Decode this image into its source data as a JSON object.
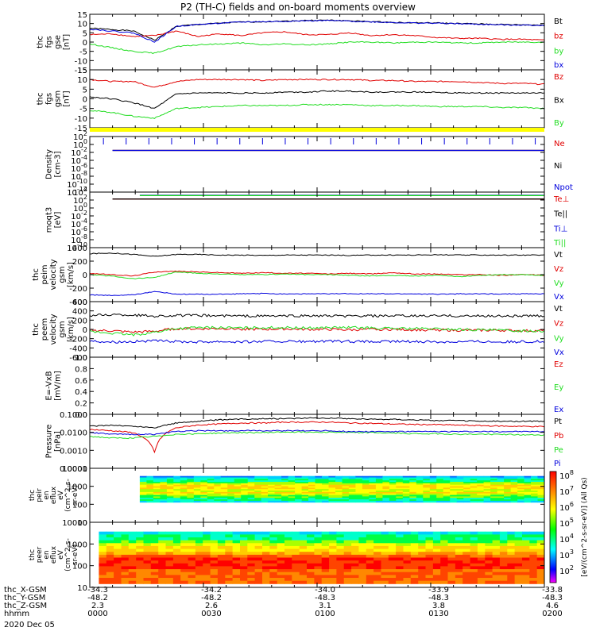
{
  "title": "P2 (TH-C) fields and on-board moments overview",
  "colors": {
    "black": "#000000",
    "red": "#e00000",
    "green": "#22dd22",
    "blue": "#0000dd",
    "yellow": "#ffff00"
  },
  "chart_data": [
    {
      "id": "fgs-gse",
      "type": "line",
      "ylabel": [
        "thc",
        "fgs",
        "gse",
        "[nT]"
      ],
      "ylim": [
        -15,
        15
      ],
      "yticks": [
        15,
        10,
        5,
        0,
        -5,
        -10,
        -15
      ],
      "series": [
        {
          "name": "Bt",
          "color": "#000000",
          "level": 9,
          "values": [
            7.5,
            6.8,
            6,
            1,
            8.5,
            9.5,
            10.2,
            10.8,
            11,
            11.3,
            11.7,
            11.8,
            11.5,
            11,
            10.6,
            10.4,
            10.3,
            10,
            9.8,
            9.5,
            9.3,
            9.2
          ]
        },
        {
          "name": "bz",
          "color": "#e00000",
          "values": [
            4,
            4.5,
            3,
            3.5,
            6,
            3,
            4.5,
            3.5,
            5,
            5.5,
            4,
            4,
            5,
            3.5,
            4,
            3.5,
            2.5,
            2,
            2,
            1.5,
            1.5,
            1
          ]
        },
        {
          "name": "by",
          "color": "#22dd22",
          "values": [
            -1,
            -3,
            -5,
            -6,
            -2.5,
            -1.5,
            -1,
            -0.5,
            -1.5,
            -1,
            -1.5,
            -1,
            0,
            0,
            -0.5,
            0,
            0,
            -0.5,
            -0.5,
            0,
            0,
            0
          ]
        },
        {
          "name": "bx",
          "color": "#0000dd",
          "values": [
            7,
            6,
            5,
            0,
            8.5,
            9.5,
            10.2,
            10.8,
            11,
            11.2,
            11.5,
            11.6,
            11.3,
            10.9,
            10.6,
            10.3,
            10.2,
            9.9,
            9.6,
            9.3,
            9.2,
            9
          ]
        }
      ]
    },
    {
      "id": "fgs-gsm",
      "type": "line",
      "ylabel": [
        "thc",
        "fgs",
        "gsm",
        "[nT]"
      ],
      "ylim": [
        -15,
        15
      ],
      "yticks": [
        15,
        10,
        5,
        0,
        -5,
        -10,
        -15
      ],
      "series": [
        {
          "name": "Bz",
          "color": "#e00000",
          "values": [
            10,
            9,
            9,
            6,
            9,
            10,
            10,
            10,
            9.5,
            10,
            10,
            10,
            10,
            9.5,
            9.5,
            9,
            9,
            9,
            8.5,
            8,
            8,
            7.5
          ]
        },
        {
          "name": "Bx",
          "color": "#000000",
          "values": [
            1,
            0,
            -2,
            -5,
            2.5,
            3,
            3,
            3,
            3,
            3.5,
            3.5,
            4,
            4,
            3.5,
            3.5,
            3.5,
            3.5,
            3,
            3,
            3,
            3,
            3
          ]
        },
        {
          "name": "By",
          "color": "#22dd22",
          "values": [
            -6,
            -7,
            -9,
            -10,
            -5,
            -4.5,
            -4,
            -3.5,
            -3.5,
            -3.5,
            -3,
            -3,
            -3,
            -3.5,
            -3.5,
            -3.5,
            -4,
            -4,
            -4,
            -4.5,
            -4.5,
            -5
          ]
        }
      ]
    },
    {
      "id": "density",
      "type": "line",
      "ylabel": [
        "Density",
        "[cm-3]"
      ],
      "ylim": [
        -12,
        4
      ],
      "yticks": [
        "10^2",
        "10^0",
        "10^-2",
        "10^-4",
        "10^-6",
        "10^-8",
        "10^-10",
        "10^-12"
      ],
      "series": [
        {
          "name": "Ne",
          "color": "#e00000",
          "level": 0
        },
        {
          "name": "Ni",
          "color": "#000000",
          "level": 0
        },
        {
          "name": "Npot",
          "color": "#0000dd",
          "level": 0
        }
      ]
    },
    {
      "id": "temperature",
      "type": "line",
      "ylabel": [
        "moqt3",
        "[eV]"
      ],
      "ylim": [
        -12,
        4
      ],
      "yticks": [
        "10^4",
        "10^2",
        "10^0",
        "10^-2",
        "10^-4",
        "10^-6",
        "10^-8",
        "10^-10"
      ],
      "series": [
        {
          "name": "Te⊥",
          "color": "#e00000",
          "level": 2
        },
        {
          "name": "Te||",
          "color": "#000000",
          "level": 2
        },
        {
          "name": "Ti⊥",
          "color": "#0000dd",
          "level": 3.1
        },
        {
          "name": "Ti||",
          "color": "#22dd22",
          "level": 3
        }
      ]
    },
    {
      "id": "peim-velocity",
      "type": "line",
      "ylabel": [
        "thc",
        "peim",
        "velocity",
        "gsm",
        "[km/s]"
      ],
      "ylim": [
        -400,
        400
      ],
      "yticks": [
        400,
        200,
        0,
        -200,
        -400
      ],
      "series": [
        {
          "name": "Vt",
          "color": "#000000",
          "values": [
            310,
            320,
            300,
            270,
            300,
            300,
            290,
            290,
            285,
            290,
            290,
            290,
            285,
            290,
            290,
            290,
            295,
            290,
            290,
            290,
            290,
            290
          ]
        },
        {
          "name": "Vz",
          "color": "#e00000",
          "values": [
            20,
            0,
            -20,
            40,
            50,
            40,
            30,
            20,
            30,
            20,
            20,
            10,
            20,
            10,
            30,
            10,
            10,
            0,
            0,
            -10,
            0,
            -10
          ]
        },
        {
          "name": "Vy",
          "color": "#22dd22",
          "values": [
            0,
            -20,
            -60,
            -40,
            40,
            20,
            10,
            0,
            0,
            10,
            0,
            0,
            -10,
            -20,
            -10,
            -20,
            -10,
            -30,
            -10,
            0,
            0,
            -10
          ]
        },
        {
          "name": "Vx",
          "color": "#0000dd",
          "values": [
            -300,
            -310,
            -300,
            -250,
            -290,
            -290,
            -290,
            -285,
            -280,
            -285,
            -285,
            -285,
            -280,
            -285,
            -285,
            -285,
            -290,
            -285,
            -285,
            -285,
            -285,
            -285
          ]
        }
      ]
    },
    {
      "id": "peem-velocity",
      "type": "line",
      "ylabel": [
        "thc",
        "peem",
        "velocity",
        "gsm",
        "[km/s]"
      ],
      "ylim": [
        -600,
        600
      ],
      "yticks": [
        600,
        400,
        200,
        0,
        -200,
        -400,
        -600
      ],
      "series": [
        {
          "name": "Vt",
          "color": "#000000",
          "values": [
            300,
            320,
            310,
            290,
            300,
            300,
            295,
            290,
            290,
            290,
            295,
            290,
            285,
            290,
            290,
            290,
            295,
            290,
            290,
            290,
            290,
            290
          ]
        },
        {
          "name": "Vz",
          "color": "#e00000",
          "values": [
            -20,
            -30,
            -60,
            -40,
            20,
            10,
            20,
            10,
            0,
            10,
            0,
            0,
            -10,
            0,
            0,
            -10,
            -10,
            -20,
            -20,
            -20,
            -30,
            -30
          ]
        },
        {
          "name": "Vy",
          "color": "#22dd22",
          "values": [
            -50,
            -80,
            -120,
            -60,
            20,
            40,
            40,
            30,
            40,
            40,
            30,
            40,
            40,
            30,
            20,
            20,
            10,
            0,
            -10,
            -20,
            -30,
            -30
          ]
        },
        {
          "name": "Vx",
          "color": "#0000dd",
          "values": [
            -250,
            -270,
            -260,
            -250,
            -260,
            -270,
            -260,
            -270,
            -260,
            -260,
            -265,
            -260,
            -260,
            -270,
            -260,
            -260,
            -270,
            -265,
            -260,
            -270,
            -265,
            -260
          ]
        }
      ]
    },
    {
      "id": "efield",
      "type": "line",
      "ylabel": [
        "E=-VxB",
        "[mV/m]"
      ],
      "ylim": [
        0,
        1
      ],
      "yticks": [
        "1.0",
        "0.8",
        "0.6",
        "0.4",
        "0.2",
        "0.0"
      ],
      "series": [
        {
          "name": "Ez",
          "color": "#e00000"
        },
        {
          "name": "Ey",
          "color": "#22dd22"
        },
        {
          "name": "Ex",
          "color": "#0000dd"
        }
      ]
    },
    {
      "id": "pressure",
      "type": "line",
      "ylabel": [
        "Pressure",
        "[nPa]"
      ],
      "ylim": [
        -3.4,
        -0.9
      ],
      "yticks": [
        "0.1000",
        "0.0100",
        "0.0010",
        "0.0001"
      ],
      "series": [
        {
          "name": "Pt",
          "color": "#000000",
          "values": [
            0.035,
            0.04,
            0.035,
            0.03,
            0.05,
            0.06,
            0.07,
            0.075,
            0.08,
            0.08,
            0.085,
            0.085,
            0.08,
            0.075,
            0.075,
            0.07,
            0.065,
            0.065,
            0.06,
            0.06,
            0.06,
            0.06
          ]
        },
        {
          "name": "Pb",
          "color": "#e00000",
          "values": [
            0.025,
            0.022,
            0.018,
            0.002,
            0.03,
            0.04,
            0.045,
            0.05,
            0.05,
            0.055,
            0.055,
            0.055,
            0.05,
            0.048,
            0.045,
            0.043,
            0.042,
            0.04,
            0.038,
            0.036,
            0.035,
            0.034
          ]
        },
        {
          "name": "Pe",
          "color": "#22dd22",
          "values": [
            0.012,
            0.01,
            0.01,
            0.012,
            0.015,
            0.016,
            0.017,
            0.018,
            0.018,
            0.019,
            0.019,
            0.019,
            0.018,
            0.018,
            0.017,
            0.016,
            0.016,
            0.015,
            0.015,
            0.015,
            0.014,
            0.014
          ]
        },
        {
          "name": "Pi",
          "color": "#0000dd",
          "values": [
            0.018,
            0.015,
            0.015,
            0.015,
            0.02,
            0.022,
            0.022,
            0.022,
            0.022,
            0.022,
            0.022,
            0.022,
            0.02,
            0.02,
            0.02,
            0.02,
            0.02,
            0.02,
            0.02,
            0.02,
            0.02,
            0.02
          ]
        }
      ]
    },
    {
      "id": "peir-spectrogram",
      "type": "heatmap",
      "ylabel": [
        "thc",
        "peir",
        "en",
        "eflux",
        "eV",
        "(cm^2-s-",
        "sr-eV)"
      ],
      "ylim": [
        0.7,
        4.2
      ],
      "yticks": [
        "10000",
        "1000",
        "100",
        "10"
      ],
      "x_start": "0009",
      "energy_range_log10": [
        2,
        3.7
      ]
    },
    {
      "id": "peer-spectrogram",
      "type": "heatmap",
      "ylabel": [
        "thc",
        "peer",
        "en",
        "eflux",
        "eV",
        "(cm^2-s-",
        "sr-eV)"
      ],
      "ylim": [
        0.7,
        4.2
      ],
      "yticks": [
        "10000",
        "1000",
        "100",
        "10"
      ],
      "x_start": "0000",
      "energy_range_log10": [
        0.9,
        3.7
      ]
    }
  ],
  "colorbar": {
    "tick_labels": [
      "10^8",
      "10^7",
      "10^6",
      "10^5",
      "10^4",
      "10^3",
      "10^2"
    ],
    "label": "[eV/(cm^2-s-sr-eV)] (All Qs)"
  },
  "x_axis": {
    "rows": [
      {
        "label": "thc_X-GSM",
        "values": [
          "-34.3",
          "-34.2",
          "-34.0",
          "-33.9",
          "-33.8"
        ]
      },
      {
        "label": "thc_Y-GSM",
        "values": [
          "-48.2",
          "-48.2",
          "-48.3",
          "-48.3",
          "-48.3"
        ]
      },
      {
        "label": "thc_Z-GSM",
        "values": [
          "2.3",
          "2.6",
          "3.1",
          "3.8",
          "4.6"
        ]
      },
      {
        "label": "hhmm",
        "values": [
          "0000",
          "0030",
          "0100",
          "0130",
          "0200"
        ]
      }
    ],
    "date": "2020 Dec 05"
  }
}
